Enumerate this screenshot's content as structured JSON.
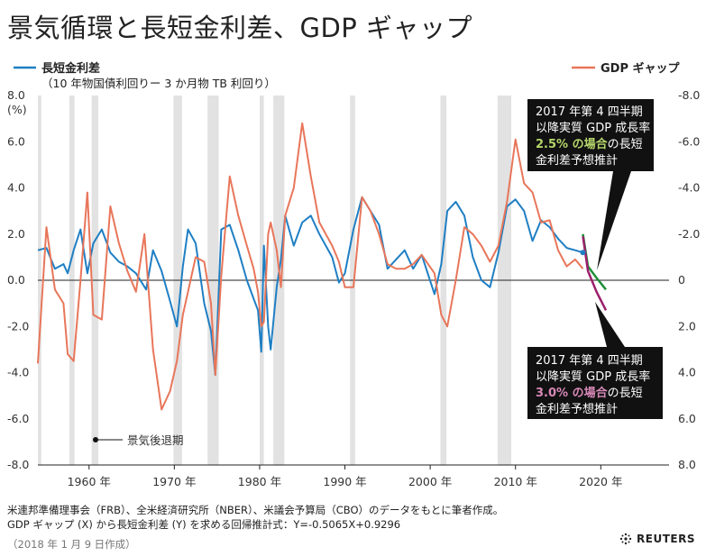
{
  "title": "景気循環と長短金利差、GDP ギャップ",
  "legend": {
    "spread_label": "長短金利差",
    "spread_sub": "（10 年物国債利回りー 3 か月物 TB 利回り）",
    "gap_label": "GDP ギャップ",
    "recession_label": "景気後退期"
  },
  "annotations": {
    "upper": {
      "line1": "2017 年第 4 四半期",
      "line2": "以降実質 GDP 成長率",
      "hl": "2.5% の場合",
      "rest": "の長短",
      "line4": "金利差予想推計"
    },
    "lower": {
      "line1": "2017 年第 4 四半期",
      "line2": "以降実質 GDP 成長率",
      "hl": "3.0% の場合",
      "rest": "の長短",
      "line4": "金利差予想推計"
    }
  },
  "footer": {
    "line1": "米連邦準備理事会（FRB）、全米経済研究所（NBER）、米議会予算局（CBO）のデータをもとに筆者作成。",
    "line2": "GDP ギャップ (X) から長短金利差 (Y) を求める回帰推計式：Y=-0.5065X+0.9296",
    "line3": "（2018 年 1 月 9 日作成）",
    "brand": "REUTERS"
  },
  "colors": {
    "spread": "#1f7fc4",
    "gap": "#e8765a",
    "recession": "#e2e2e2",
    "proj25": "#1f8f3a",
    "proj30": "#9c1f6b",
    "hl25": "#b5d66b",
    "hl30": "#d889b8"
  },
  "chart_data": {
    "type": "line",
    "xlim": [
      1954,
      2028
    ],
    "ylim": [
      -8,
      8
    ],
    "left_axis": {
      "unit": "(%)",
      "ticks": [
        "8.0",
        "6.0",
        "4.0",
        "2.0",
        "0.0",
        "-2.0",
        "-4.0",
        "-6.0",
        "-8.0"
      ]
    },
    "right_axis": {
      "ticks": [
        "-8.0",
        "-6.0",
        "-4.0",
        "-2.0",
        "0",
        "2.0",
        "4.0",
        "6.0",
        "8.0"
      ]
    },
    "x_ticks": [
      "1960 年",
      "1970 年",
      "1980 年",
      "1990 年",
      "2000 年",
      "2010 年",
      "2020 年"
    ],
    "recessions": [
      [
        1954.0,
        1954.4
      ],
      [
        1957.7,
        1958.3
      ],
      [
        1960.3,
        1961.1
      ],
      [
        1969.9,
        1970.9
      ],
      [
        1973.9,
        1975.2
      ],
      [
        1980.0,
        1980.5
      ],
      [
        1981.6,
        1982.9
      ],
      [
        1990.6,
        1991.2
      ],
      [
        2001.2,
        2001.9
      ],
      [
        2007.9,
        2009.5
      ]
    ],
    "series": [
      {
        "name": "長短金利差",
        "axis": "left",
        "points": [
          [
            1954.0,
            1.3
          ],
          [
            1955.0,
            1.4
          ],
          [
            1956.0,
            0.5
          ],
          [
            1957.0,
            0.7
          ],
          [
            1957.5,
            0.3
          ],
          [
            1958.2,
            1.3
          ],
          [
            1959.0,
            2.2
          ],
          [
            1959.8,
            0.3
          ],
          [
            1960.5,
            1.6
          ],
          [
            1961.5,
            2.2
          ],
          [
            1962.5,
            1.2
          ],
          [
            1963.5,
            0.8
          ],
          [
            1964.5,
            0.6
          ],
          [
            1965.5,
            0.3
          ],
          [
            1966.7,
            -0.4
          ],
          [
            1967.5,
            1.3
          ],
          [
            1968.5,
            0.4
          ],
          [
            1969.5,
            -0.9
          ],
          [
            1970.3,
            -2.0
          ],
          [
            1971.0,
            0.6
          ],
          [
            1971.6,
            2.2
          ],
          [
            1972.5,
            1.6
          ],
          [
            1973.5,
            -1.0
          ],
          [
            1974.3,
            -2.2
          ],
          [
            1974.8,
            -4.1
          ],
          [
            1975.5,
            2.2
          ],
          [
            1976.5,
            2.4
          ],
          [
            1977.5,
            1.3
          ],
          [
            1978.5,
            0.0
          ],
          [
            1979.3,
            -0.8
          ],
          [
            1979.8,
            -1.3
          ],
          [
            1980.2,
            -3.1
          ],
          [
            1980.5,
            1.5
          ],
          [
            1981.0,
            -2.0
          ],
          [
            1981.3,
            -3.0
          ],
          [
            1982.0,
            -0.3
          ],
          [
            1982.5,
            0.9
          ],
          [
            1983.0,
            2.8
          ],
          [
            1984.0,
            1.5
          ],
          [
            1985.0,
            2.5
          ],
          [
            1986.0,
            2.8
          ],
          [
            1987.0,
            2.0
          ],
          [
            1988.5,
            1.0
          ],
          [
            1989.3,
            -0.1
          ],
          [
            1990.0,
            0.3
          ],
          [
            1991.0,
            2.2
          ],
          [
            1992.0,
            3.6
          ],
          [
            1993.0,
            3.0
          ],
          [
            1994.0,
            2.4
          ],
          [
            1995.0,
            0.5
          ],
          [
            1996.0,
            0.9
          ],
          [
            1997.0,
            1.3
          ],
          [
            1998.0,
            0.5
          ],
          [
            1999.0,
            1.1
          ],
          [
            2000.5,
            -0.6
          ],
          [
            2001.3,
            0.7
          ],
          [
            2002.0,
            3.0
          ],
          [
            2003.0,
            3.4
          ],
          [
            2004.0,
            2.8
          ],
          [
            2005.0,
            1.0
          ],
          [
            2006.0,
            0.0
          ],
          [
            2007.0,
            -0.3
          ],
          [
            2008.0,
            1.2
          ],
          [
            2009.0,
            3.2
          ],
          [
            2010.0,
            3.5
          ],
          [
            2011.0,
            3.0
          ],
          [
            2012.0,
            1.7
          ],
          [
            2013.0,
            2.6
          ],
          [
            2014.0,
            2.3
          ],
          [
            2015.0,
            1.8
          ],
          [
            2016.0,
            1.4
          ],
          [
            2017.0,
            1.3
          ],
          [
            2017.9,
            1.2
          ]
        ]
      },
      {
        "name": "GDP ギャップ",
        "axis": "right_inverted",
        "points": [
          [
            1954.0,
            3.6
          ],
          [
            1955.0,
            -2.3
          ],
          [
            1956.0,
            0.4
          ],
          [
            1957.0,
            1.0
          ],
          [
            1957.5,
            3.2
          ],
          [
            1958.2,
            3.5
          ],
          [
            1959.0,
            0.0
          ],
          [
            1959.8,
            -3.8
          ],
          [
            1960.5,
            1.5
          ],
          [
            1961.5,
            1.7
          ],
          [
            1962.5,
            -3.2
          ],
          [
            1963.5,
            -1.6
          ],
          [
            1964.5,
            -0.4
          ],
          [
            1965.5,
            0.5
          ],
          [
            1966.5,
            -2.0
          ],
          [
            1967.5,
            3.0
          ],
          [
            1968.5,
            5.6
          ],
          [
            1969.5,
            4.8
          ],
          [
            1970.3,
            3.5
          ],
          [
            1971.0,
            1.5
          ],
          [
            1971.6,
            0.5
          ],
          [
            1972.5,
            -1.0
          ],
          [
            1973.5,
            -0.8
          ],
          [
            1974.3,
            1.0
          ],
          [
            1974.8,
            4.1
          ],
          [
            1975.5,
            -0.2
          ],
          [
            1976.5,
            -4.5
          ],
          [
            1977.5,
            -2.8
          ],
          [
            1978.5,
            -1.5
          ],
          [
            1979.3,
            -0.5
          ],
          [
            1979.8,
            0.5
          ],
          [
            1980.2,
            2.0
          ],
          [
            1980.5,
            1.8
          ],
          [
            1981.0,
            -2.0
          ],
          [
            1981.3,
            -2.5
          ],
          [
            1982.0,
            -1.3
          ],
          [
            1982.5,
            0.3
          ],
          [
            1983.0,
            -2.8
          ],
          [
            1984.0,
            -4.0
          ],
          [
            1985.0,
            -6.8
          ],
          [
            1986.0,
            -4.5
          ],
          [
            1987.0,
            -2.5
          ],
          [
            1988.5,
            -1.5
          ],
          [
            1989.3,
            -0.8
          ],
          [
            1990.0,
            0.3
          ],
          [
            1991.0,
            0.3
          ],
          [
            1992.0,
            -3.6
          ],
          [
            1993.0,
            -3.0
          ],
          [
            1994.0,
            -2.0
          ],
          [
            1995.0,
            -0.7
          ],
          [
            1996.0,
            -0.5
          ],
          [
            1997.0,
            -0.5
          ],
          [
            1998.0,
            -0.7
          ],
          [
            1999.0,
            -1.1
          ],
          [
            2000.5,
            -0.3
          ],
          [
            2001.3,
            1.5
          ],
          [
            2002.0,
            2.0
          ],
          [
            2003.0,
            0.0
          ],
          [
            2004.0,
            -2.3
          ],
          [
            2005.0,
            -2.0
          ],
          [
            2006.0,
            -1.5
          ],
          [
            2007.0,
            -0.8
          ],
          [
            2008.0,
            -1.5
          ],
          [
            2009.0,
            -3.4
          ],
          [
            2010.0,
            -6.1
          ],
          [
            2011.0,
            -4.2
          ],
          [
            2012.0,
            -3.8
          ],
          [
            2013.0,
            -2.5
          ],
          [
            2014.0,
            -2.6
          ],
          [
            2015.0,
            -1.3
          ],
          [
            2016.0,
            -0.6
          ],
          [
            2017.0,
            -0.9
          ],
          [
            2017.9,
            -0.5
          ]
        ]
      },
      {
        "name": "2.5% projection",
        "axis": "left",
        "points": [
          [
            2017.9,
            2.0
          ],
          [
            2018.5,
            0.6
          ],
          [
            2019.5,
            0.1
          ],
          [
            2020.6,
            -0.4
          ]
        ]
      },
      {
        "name": "3.0% projection",
        "axis": "left",
        "points": [
          [
            2017.9,
            1.9
          ],
          [
            2018.5,
            0.4
          ],
          [
            2019.5,
            -0.5
          ],
          [
            2020.6,
            -1.3
          ]
        ]
      }
    ]
  }
}
